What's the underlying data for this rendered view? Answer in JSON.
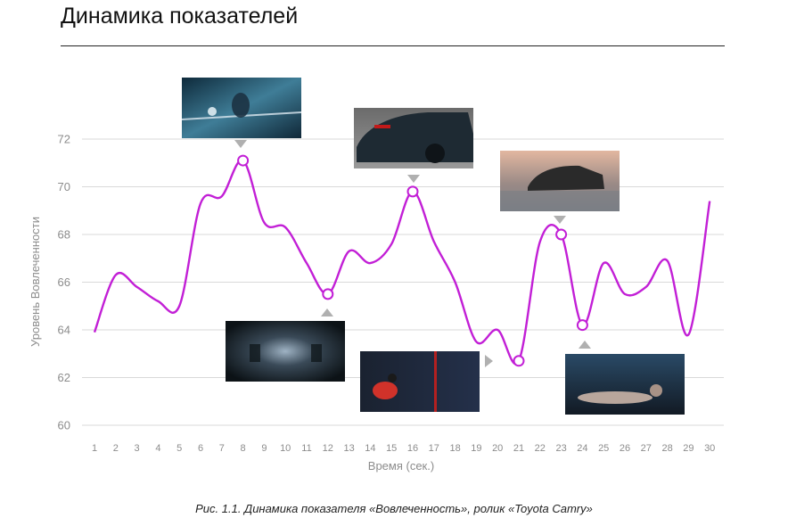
{
  "title": "Динамика показателей",
  "caption": "Рис. 1.1.  Динамика показателя «Вовлеченность», ролик «Toyota Camry»",
  "colors": {
    "line": "#c21fd6",
    "grid": "#d9d9d9",
    "text": "#8c8c8c",
    "marker_fill": "#ffffff",
    "pointer": "#b0b0b0"
  },
  "chart_data": {
    "type": "line",
    "xlabel": "Время (сек.)",
    "ylabel": "Уровень Вовлеченности",
    "ylim": [
      60,
      72
    ],
    "yticks": [
      60,
      62,
      64,
      66,
      68,
      70,
      72
    ],
    "categories": [
      "1",
      "2",
      "3",
      "4",
      "5",
      "6",
      "7",
      "8",
      "9",
      "10",
      "11",
      "12",
      "13",
      "14",
      "15",
      "16",
      "17",
      "18",
      "19",
      "20",
      "21",
      "22",
      "23",
      "24",
      "25",
      "26",
      "27",
      "28",
      "29",
      "30"
    ],
    "series": [
      {
        "values": [
          63.9,
          66.3,
          65.8,
          65.2,
          65.0,
          69.3,
          69.6,
          71.1,
          68.5,
          68.3,
          66.8,
          65.5,
          67.3,
          66.8,
          67.6,
          69.8,
          67.7,
          66.0,
          63.5,
          64.0,
          62.7,
          67.7,
          68.0,
          64.2,
          66.8,
          65.5,
          65.8,
          66.9,
          63.8,
          69.4
        ]
      }
    ],
    "highlighted_points": [
      8,
      12,
      16,
      21,
      23,
      24
    ],
    "grid": true,
    "legend": "none"
  },
  "thumbnails": [
    {
      "name": "thumb-spacesuit",
      "label": "figure in futuristic light streaks",
      "at": 8,
      "pointer": "down"
    },
    {
      "name": "thumb-car-rear",
      "label": "dark sedan rear view",
      "at": 16,
      "pointer": "down"
    },
    {
      "name": "thumb-car-front",
      "label": "sedan on wet airfield at dusk",
      "at": 23,
      "pointer": "down"
    },
    {
      "name": "thumb-tunnel",
      "label": "dark tunnel with lights",
      "at": 12,
      "pointer": "up"
    },
    {
      "name": "thumb-boxer",
      "label": "boxer in red light",
      "at": 21,
      "pointer": "right"
    },
    {
      "name": "thumb-fallen-boxer",
      "label": "fallen boxer on floor",
      "at": 24,
      "pointer": "up"
    }
  ]
}
